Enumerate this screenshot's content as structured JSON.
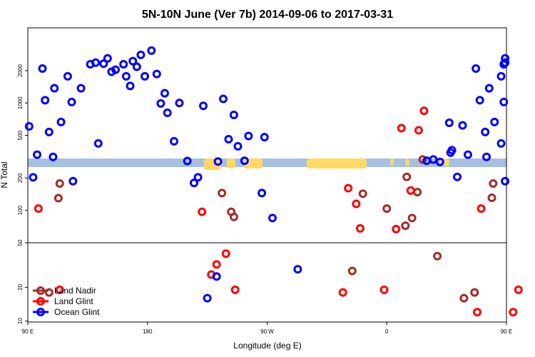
{
  "chart_data": {
    "type": "scatter",
    "title": "5N-10N June (Ver 7b)   2014-09-06 to 2017-03-31",
    "xlabel": "Longitude (deg E)",
    "ylabel": "N Total",
    "x_domain": [
      90,
      450
    ],
    "x_ticks": [
      {
        "x": 90,
        "label": "90 E"
      },
      {
        "x": 180,
        "label": "180"
      },
      {
        "x": 270,
        "label": "90 W"
      },
      {
        "x": 360,
        "label": "0"
      },
      {
        "x": 450,
        "label": "90 E"
      },
      {
        "x": 540,
        "label": "180"
      }
    ],
    "panels": [
      {
        "name": "upper",
        "scale": "log",
        "ylim": [
          50,
          5000
        ],
        "y_ticks": [
          100,
          200,
          500,
          1000,
          2000
        ]
      },
      {
        "name": "lower",
        "scale": "log",
        "ylim": [
          9.8,
          50
        ],
        "y_ticks": [
          10,
          20,
          50
        ]
      }
    ],
    "colors": {
      "land_nadir": "#a52a2a",
      "land_glint": "#ff0000",
      "ocean_glint": "#0000ff",
      "band": "#a7bfe0",
      "land_mask": "#ffd966"
    },
    "legend": {
      "position": "bottom-left",
      "entries": [
        {
          "key": "land_nadir",
          "label": "Land Nadir"
        },
        {
          "key": "land_glint",
          "label": "Land Glint"
        },
        {
          "key": "ocean_glint",
          "label": "Ocean Glint"
        }
      ]
    },
    "series": [
      {
        "name": "Land Nadir",
        "color_key": "land_nadir",
        "points": [
          {
            "x": 113,
            "y": 130
          },
          {
            "x": 114,
            "y": 178
          },
          {
            "x": 106,
            "y": 18
          },
          {
            "x": 236,
            "y": 145
          },
          {
            "x": 243,
            "y": 97
          },
          {
            "x": 245,
            "y": 87
          },
          {
            "x": 334,
            "y": 28
          },
          {
            "x": 342,
            "y": 143
          },
          {
            "x": 360,
            "y": 104
          },
          {
            "x": 374,
            "y": 72
          },
          {
            "x": 375,
            "y": 205
          },
          {
            "x": 379,
            "y": 85
          },
          {
            "x": 383,
            "y": 148
          },
          {
            "x": 387,
            "y": 298
          },
          {
            "x": 398,
            "y": 38
          },
          {
            "x": 418,
            "y": 16
          },
          {
            "x": 426,
            "y": 18
          },
          {
            "x": 439,
            "y": 131
          },
          {
            "x": 440,
            "y": 178
          }
        ]
      },
      {
        "name": "Land Glint",
        "color_key": "land_glint",
        "points": [
          {
            "x": 98,
            "y": 104
          },
          {
            "x": 114,
            "y": 19
          },
          {
            "x": 221,
            "y": 97
          },
          {
            "x": 228,
            "y": 26
          },
          {
            "x": 232,
            "y": 32
          },
          {
            "x": 239,
            "y": 40
          },
          {
            "x": 246,
            "y": 19
          },
          {
            "x": 327,
            "y": 18
          },
          {
            "x": 331,
            "y": 161
          },
          {
            "x": 337,
            "y": 115
          },
          {
            "x": 340,
            "y": 68
          },
          {
            "x": 358,
            "y": 19
          },
          {
            "x": 367,
            "y": 67
          },
          {
            "x": 371,
            "y": 583
          },
          {
            "x": 378,
            "y": 153
          },
          {
            "x": 384,
            "y": 557
          },
          {
            "x": 388,
            "y": 845
          },
          {
            "x": 428,
            "y": 12
          },
          {
            "x": 431,
            "y": 104
          },
          {
            "x": 455,
            "y": 12
          },
          {
            "x": 459,
            "y": 19
          }
        ]
      },
      {
        "name": "Ocean Glint",
        "color_key": "ocean_glint",
        "points": [
          {
            "x": 91,
            "y": 605
          },
          {
            "x": 94,
            "y": 203
          },
          {
            "x": 97,
            "y": 330
          },
          {
            "x": 101,
            "y": 2090
          },
          {
            "x": 103,
            "y": 1060
          },
          {
            "x": 106,
            "y": 537
          },
          {
            "x": 109,
            "y": 315
          },
          {
            "x": 110,
            "y": 1370
          },
          {
            "x": 115,
            "y": 665
          },
          {
            "x": 120,
            "y": 1770
          },
          {
            "x": 123,
            "y": 1020
          },
          {
            "x": 124,
            "y": 187
          },
          {
            "x": 130,
            "y": 1370
          },
          {
            "x": 137,
            "y": 2290
          },
          {
            "x": 141,
            "y": 2370
          },
          {
            "x": 143,
            "y": 420
          },
          {
            "x": 147,
            "y": 2320
          },
          {
            "x": 150,
            "y": 2600
          },
          {
            "x": 153,
            "y": 1950
          },
          {
            "x": 156,
            "y": 2040
          },
          {
            "x": 162,
            "y": 2290
          },
          {
            "x": 164,
            "y": 1770
          },
          {
            "x": 167,
            "y": 1440
          },
          {
            "x": 169,
            "y": 2450
          },
          {
            "x": 172,
            "y": 2170
          },
          {
            "x": 175,
            "y": 2800
          },
          {
            "x": 178,
            "y": 1770
          },
          {
            "x": 183,
            "y": 3070
          },
          {
            "x": 187,
            "y": 1860
          },
          {
            "x": 190,
            "y": 990
          },
          {
            "x": 193,
            "y": 1230
          },
          {
            "x": 195,
            "y": 810
          },
          {
            "x": 200,
            "y": 440
          },
          {
            "x": 204,
            "y": 1000
          },
          {
            "x": 210,
            "y": 288
          },
          {
            "x": 215,
            "y": 180
          },
          {
            "x": 222,
            "y": 940
          },
          {
            "x": 218,
            "y": 203
          },
          {
            "x": 225,
            "y": 16
          },
          {
            "x": 232,
            "y": 25
          },
          {
            "x": 233,
            "y": 285
          },
          {
            "x": 237,
            "y": 1090
          },
          {
            "x": 241,
            "y": 460
          },
          {
            "x": 245,
            "y": 773
          },
          {
            "x": 248,
            "y": 395
          },
          {
            "x": 253,
            "y": 290
          },
          {
            "x": 256,
            "y": 492
          },
          {
            "x": 266,
            "y": 145
          },
          {
            "x": 268,
            "y": 480
          },
          {
            "x": 274,
            "y": 85
          },
          {
            "x": 293,
            "y": 29
          },
          {
            "x": 390,
            "y": 290
          },
          {
            "x": 395,
            "y": 298
          },
          {
            "x": 400,
            "y": 283
          },
          {
            "x": 408,
            "y": 345
          },
          {
            "x": 409,
            "y": 363
          },
          {
            "x": 407,
            "y": 654
          },
          {
            "x": 413,
            "y": 205
          },
          {
            "x": 417,
            "y": 618
          },
          {
            "x": 421,
            "y": 330
          },
          {
            "x": 427,
            "y": 2090
          },
          {
            "x": 430,
            "y": 1060
          },
          {
            "x": 434,
            "y": 537
          },
          {
            "x": 435,
            "y": 315
          },
          {
            "x": 437,
            "y": 1370
          },
          {
            "x": 441,
            "y": 665
          },
          {
            "x": 446,
            "y": 1770
          },
          {
            "x": 448,
            "y": 1020
          },
          {
            "x": 449,
            "y": 187
          },
          {
            "x": 448,
            "y": 2290
          },
          {
            "x": 449,
            "y": 2370
          },
          {
            "x": 446,
            "y": 420
          },
          {
            "x": 449,
            "y": 2600
          }
        ]
      }
    ]
  }
}
